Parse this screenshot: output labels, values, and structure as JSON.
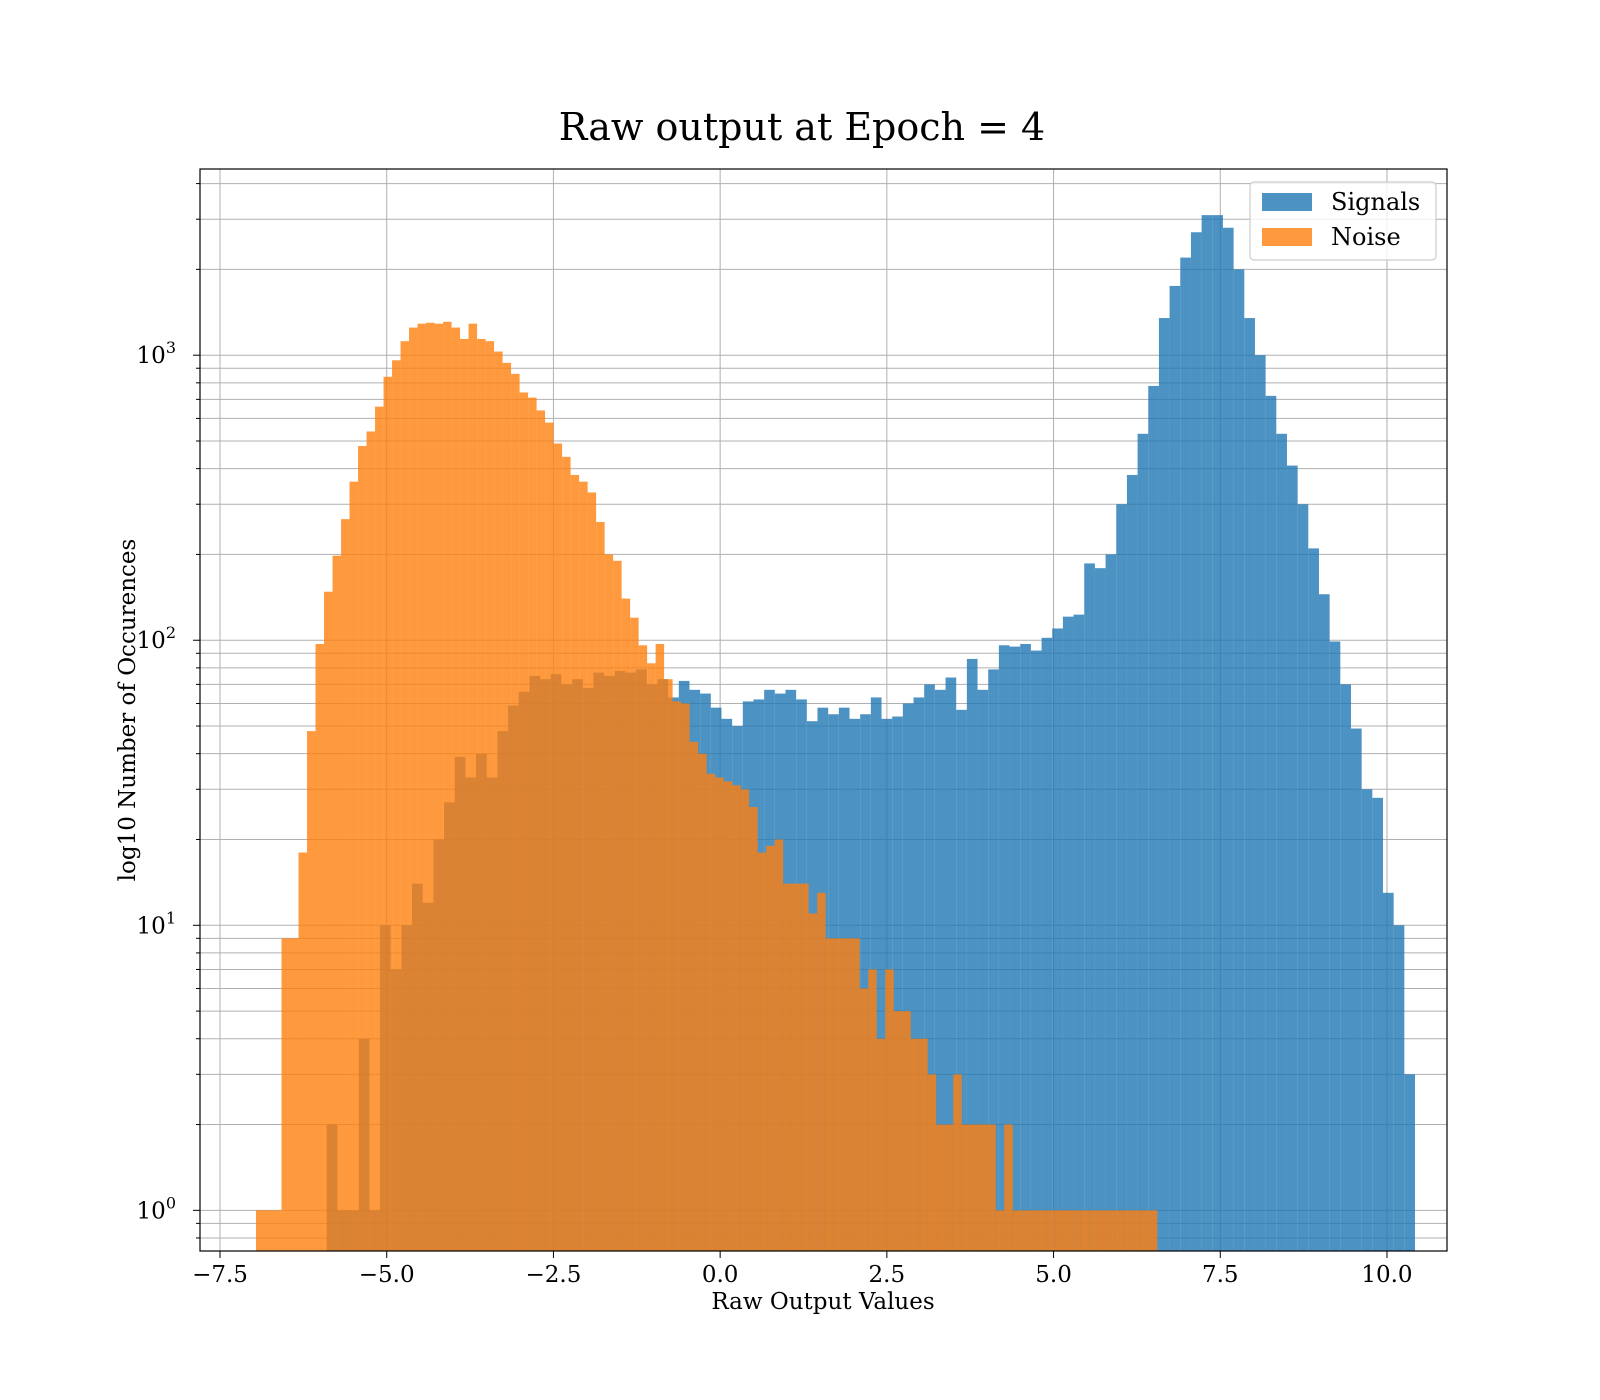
{
  "chart_data": {
    "type": "bar",
    "title": "Raw output at Epoch = 4",
    "xlabel": "Raw Output Values",
    "ylabel": "log10 Number of Occurences",
    "y_scale": "log",
    "grid": true,
    "legend_position": "upper right",
    "xlim": [
      -7.8,
      10.9
    ],
    "ylim": [
      0.72,
      4500
    ],
    "x_ticks": [
      -7.5,
      -5.0,
      -2.5,
      0.0,
      2.5,
      5.0,
      7.5,
      10.0
    ],
    "x_tick_labels": [
      "−7.5",
      "−5.0",
      "−2.5",
      "0.0",
      "2.5",
      "5.0",
      "7.5",
      "10.0"
    ],
    "y_tick_values": [
      1,
      10,
      100,
      1000
    ],
    "y_tick_labels": [
      {
        "base": "10",
        "exp": "0"
      },
      {
        "base": "10",
        "exp": "1"
      },
      {
        "base": "10",
        "exp": "2"
      },
      {
        "base": "10",
        "exp": "3"
      }
    ],
    "series": [
      {
        "name": "Signals",
        "color": "#1f77b4",
        "alpha": 0.8,
        "bin_edges_start": -5.9,
        "bin_width": 0.16,
        "values": [
          2,
          1,
          1,
          4,
          1,
          10,
          7,
          10,
          14,
          12,
          20,
          27,
          39,
          33,
          40,
          33,
          48,
          59,
          66,
          75,
          73,
          76,
          70,
          73,
          68,
          77,
          75,
          78,
          77,
          79,
          70,
          73,
          63,
          72,
          67,
          65,
          58,
          53,
          50,
          61,
          62,
          67,
          65,
          67,
          62,
          52,
          58,
          55,
          58,
          53,
          55,
          63,
          53,
          54,
          60,
          63,
          70,
          67,
          74,
          57,
          86,
          67,
          79,
          96,
          95,
          97,
          92,
          102,
          110,
          121,
          123,
          186,
          179,
          200,
          300,
          380,
          530,
          780,
          1350,
          1750,
          2200,
          2700,
          3100,
          3100,
          2800,
          2000,
          1350,
          1000,
          720,
          530,
          410,
          300,
          210,
          145,
          99,
          70,
          49,
          30,
          28,
          13,
          10,
          3
        ]
      },
      {
        "name": "Noise",
        "color": "#ff7f0e",
        "alpha": 0.8,
        "bin_edges_start": -6.96,
        "bin_width": 0.1275,
        "values": [
          1,
          1,
          1,
          9,
          9,
          18,
          48,
          97,
          148,
          198,
          266,
          360,
          480,
          540,
          660,
          840,
          960,
          1120,
          1250,
          1290,
          1300,
          1290,
          1310,
          1250,
          1140,
          1290,
          1140,
          1120,
          1030,
          940,
          860,
          740,
          710,
          640,
          580,
          490,
          440,
          380,
          360,
          330,
          260,
          200,
          190,
          140,
          120,
          96,
          83,
          97,
          73,
          61,
          60,
          44,
          40,
          34,
          33,
          32,
          31,
          30,
          26,
          18,
          19,
          20,
          14,
          14,
          14,
          11,
          13,
          9,
          9,
          9,
          9,
          6,
          7,
          4,
          7,
          5,
          5,
          4,
          4,
          3,
          2,
          2,
          3,
          2,
          2,
          2,
          2,
          1,
          2,
          1,
          1,
          1,
          1,
          1,
          1,
          1,
          1,
          1,
          1,
          1,
          1,
          1,
          1,
          1,
          1,
          1
        ]
      }
    ]
  }
}
